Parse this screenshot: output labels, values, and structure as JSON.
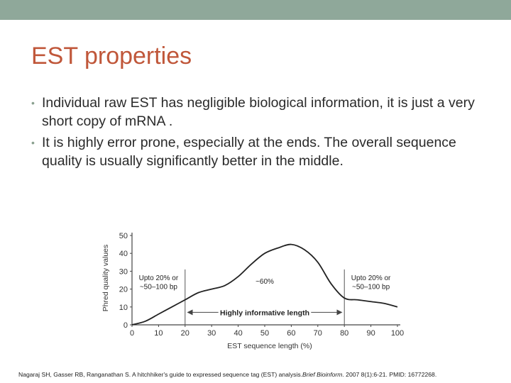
{
  "slide": {
    "title": "EST properties",
    "bullets": [
      "Individual raw EST has negligible biological information, it is just a very short copy of mRNA .",
      "It is highly error prone, especially at the ends. The overall sequence quality is usually significantly better in the middle."
    ],
    "bullet_icon": "bullet-dot-icon",
    "accent_color": "#c0573a",
    "topbar_color": "#8fa89a"
  },
  "chart_data": {
    "type": "line",
    "title": "",
    "xlabel": "EST sequence length (%)",
    "ylabel": "Phred quality values",
    "x": [
      0,
      5,
      10,
      15,
      20,
      25,
      30,
      35,
      40,
      45,
      50,
      55,
      60,
      65,
      70,
      75,
      80,
      85,
      90,
      95,
      100
    ],
    "series": [
      {
        "values": [
          0,
          2,
          6,
          10,
          14,
          18,
          20,
          22,
          27,
          34,
          40,
          43,
          45,
          42,
          35,
          23,
          15,
          14,
          13,
          12,
          10
        ]
      }
    ],
    "xlim": [
      0,
      100
    ],
    "ylim": [
      0,
      50
    ],
    "xticks": [
      "0",
      "10",
      "20",
      "30",
      "40",
      "50",
      "60",
      "70",
      "80",
      "90",
      "100"
    ],
    "yticks": [
      "0",
      "10",
      "20",
      "30",
      "40",
      "50"
    ],
    "annotations": {
      "left": [
        "Upto 20% or",
        "~50–100 bp"
      ],
      "middle": "~60%",
      "right": [
        "Upto 20% or",
        "~50–100 bp"
      ],
      "arrow_label": "Highly informative length"
    },
    "dividers_x": [
      20,
      80
    ],
    "grid": false
  },
  "citation": {
    "before": "Nagaraj SH, Gasser RB, Ranganathan S. A hitchhiker's guide to expressed sequence tag (EST) analysis.",
    "journal": "Brief Bioinform",
    "after": ". 2007 8(1):6-21. PMID: 16772268."
  }
}
